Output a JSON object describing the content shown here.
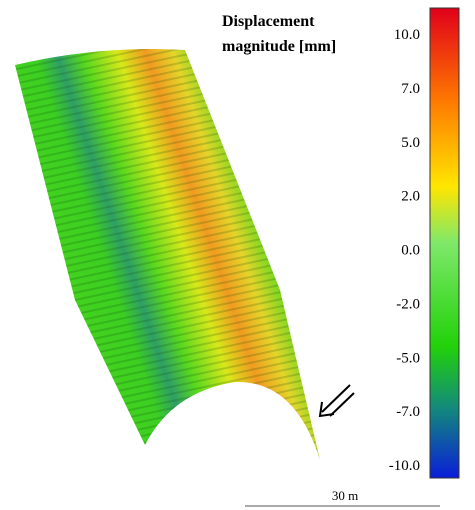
{
  "colorbar": {
    "title_lines": [
      "Displacement",
      "magnitude [mm]"
    ],
    "tick_labels": [
      "10.0",
      "7.0",
      "5.0",
      "2.0",
      "0.0",
      "-2.0",
      "-5.0",
      "-7.0",
      "-10.0"
    ]
  },
  "scale_bar": "30 m"
}
